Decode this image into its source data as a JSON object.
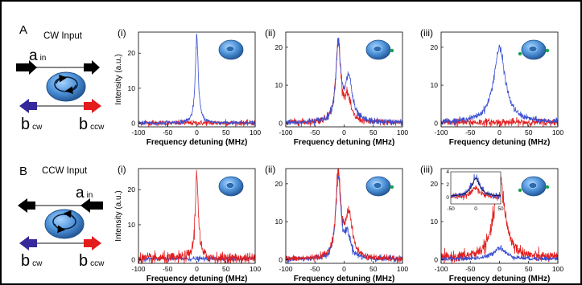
{
  "figure": {
    "rows": [
      {
        "letter": "A",
        "title": "CW Input",
        "labels": {
          "ain": "a",
          "ain_sub": "in",
          "bcw": "b",
          "bcw_sub": "cw",
          "bccw": "b",
          "bccw_sub": "ccw"
        }
      },
      {
        "letter": "B",
        "title": "CCW Input",
        "labels": {
          "ain": "a",
          "ain_sub": "in",
          "bcw": "b",
          "bcw_sub": "cw",
          "bccw": "b",
          "bccw_sub": "ccw"
        }
      }
    ]
  },
  "colors": {
    "cw": "#3a4fd0",
    "ccw": "#e31c1c",
    "resonator": "#4a8fd6",
    "tip": "#17a34a"
  },
  "chart_data": [
    {
      "type": "line",
      "panel_label": "(i)",
      "row": "A",
      "xlabel": "Frequency detuning (MHz)",
      "ylabel": "Intensity (a.u.)",
      "xlim": [
        -100,
        100
      ],
      "ylim": [
        -1,
        26
      ],
      "xticks": [
        -100,
        -50,
        0,
        50,
        100
      ],
      "yticks": [
        0,
        10,
        20
      ],
      "tips": 0,
      "series": [
        {
          "color": "ccw",
          "lorentzians": [],
          "baseline": 0.1,
          "noise": 0.45
        },
        {
          "color": "cw",
          "lorentzians": [
            {
              "x0": 0,
              "amp": 25,
              "width": 3
            }
          ],
          "baseline": 0.1,
          "noise": 0.35
        }
      ]
    },
    {
      "type": "line",
      "panel_label": "(ii)",
      "row": "A",
      "xlabel": "Frequency detuning (MHz)",
      "xlim": [
        -100,
        100
      ],
      "ylim": [
        -1,
        24
      ],
      "xticks": [
        -100,
        -50,
        0,
        50,
        100
      ],
      "yticks": [
        0,
        10,
        20
      ],
      "tips": 1,
      "series": [
        {
          "color": "ccw",
          "lorentzians": [
            {
              "x0": -10,
              "amp": 21.5,
              "width": 5
            },
            {
              "x0": 6,
              "amp": 6,
              "width": 6
            }
          ],
          "baseline": 0.1,
          "noise": 0.5
        },
        {
          "color": "cw",
          "lorentzians": [
            {
              "x0": -10,
              "amp": 20,
              "width": 5
            },
            {
              "x0": 8,
              "amp": 11.5,
              "width": 7
            }
          ],
          "baseline": 0.1,
          "noise": 0.5
        }
      ]
    },
    {
      "type": "line",
      "panel_label": "(iii)",
      "row": "A",
      "xlabel": "Frequency detuning (MHz)",
      "xlim": [
        -100,
        100
      ],
      "ylim": [
        -1,
        24
      ],
      "xticks": [
        -100,
        -50,
        0,
        50,
        100
      ],
      "yticks": [
        0,
        10,
        20
      ],
      "tips": 2,
      "series": [
        {
          "color": "ccw",
          "lorentzians": [],
          "baseline": 0.2,
          "noise": 0.6
        },
        {
          "color": "cw",
          "lorentzians": [
            {
              "x0": 0,
              "amp": 19.5,
              "width": 12
            }
          ],
          "baseline": 0.2,
          "noise": 0.4
        }
      ]
    },
    {
      "type": "line",
      "panel_label": "(i)",
      "row": "B",
      "xlabel": "Frequency detuning (MHz)",
      "ylabel": "Intensity (a.u.)",
      "xlim": [
        -100,
        100
      ],
      "ylim": [
        -1,
        26
      ],
      "xticks": [
        -100,
        -50,
        0,
        50,
        100
      ],
      "yticks": [
        0,
        10,
        20
      ],
      "tips": 0,
      "series": [
        {
          "color": "cw",
          "lorentzians": [],
          "baseline": 0.3,
          "noise": 0.4
        },
        {
          "color": "ccw",
          "lorentzians": [
            {
              "x0": 0,
              "amp": 25,
              "width": 3
            }
          ],
          "baseline": 0.4,
          "noise": 0.9
        }
      ]
    },
    {
      "type": "line",
      "panel_label": "(ii)",
      "row": "B",
      "xlabel": "Frequency detuning (MHz)",
      "xlim": [
        -100,
        100
      ],
      "ylim": [
        -1,
        24
      ],
      "xticks": [
        -100,
        -50,
        0,
        50,
        100
      ],
      "yticks": [
        0,
        10,
        20
      ],
      "tips": 1,
      "series": [
        {
          "color": "cw",
          "lorentzians": [
            {
              "x0": -10,
              "amp": 21.5,
              "width": 5
            },
            {
              "x0": 6,
              "amp": 6,
              "width": 6
            }
          ],
          "baseline": 0.1,
          "noise": 0.5
        },
        {
          "color": "ccw",
          "lorentzians": [
            {
              "x0": -10,
              "amp": 22.5,
              "width": 5
            },
            {
              "x0": 8,
              "amp": 11.5,
              "width": 7
            }
          ],
          "baseline": 0.1,
          "noise": 0.5
        }
      ]
    },
    {
      "type": "line",
      "panel_label": "(iii)",
      "row": "B",
      "xlabel": "Frequency detuning (MHz)",
      "xlim": [
        -100,
        100
      ],
      "ylim": [
        -1,
        24
      ],
      "xticks": [
        -100,
        -50,
        0,
        50,
        100
      ],
      "yticks": [
        0,
        10,
        20
      ],
      "tips": 2,
      "series": [
        {
          "color": "ccw",
          "lorentzians": [
            {
              "x0": 0,
              "amp": 21.5,
              "width": 11
            }
          ],
          "baseline": 0.3,
          "noise": 0.8
        },
        {
          "color": "cw",
          "lorentzians": [
            {
              "x0": 0,
              "amp": 3,
              "width": 12
            }
          ],
          "baseline": 0.15,
          "noise": 0.35
        }
      ],
      "inset": {
        "xlim": [
          -50,
          50
        ],
        "ylim": [
          -1,
          4
        ],
        "xticks": [
          -50,
          0,
          50
        ],
        "yticks": [
          0,
          2,
          4
        ],
        "series": [
          {
            "color": "ccw",
            "lorentzians": [
              {
                "x0": 0,
                "amp": 1.6,
                "width": 8
              }
            ],
            "baseline": 0.1,
            "noise": 0.25
          },
          {
            "color": "cw",
            "lorentzians": [
              {
                "x0": 0,
                "amp": 3,
                "width": 10
              }
            ],
            "baseline": 0.15,
            "noise": 0.3
          }
        ]
      }
    }
  ]
}
